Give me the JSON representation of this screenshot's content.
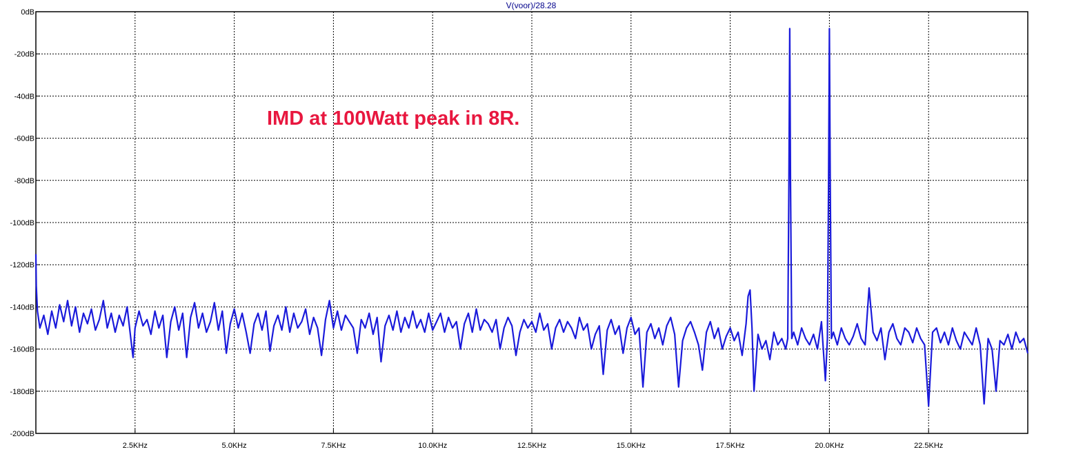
{
  "chart_data": {
    "type": "line",
    "title": "V(voor)/28.28",
    "annotation": "IMD at 100Watt peak in 8R.",
    "xlabel": "",
    "ylabel": "",
    "xlim": [
      0,
      25000
    ],
    "ylim": [
      -200,
      0
    ],
    "x_ticks": [
      2500,
      5000,
      7500,
      10000,
      12500,
      15000,
      17500,
      20000,
      22500
    ],
    "x_tick_labels": [
      "2.5KHz",
      "5.0KHz",
      "7.5KHz",
      "10.0KHz",
      "12.5KHz",
      "15.0KHz",
      "17.5KHz",
      "20.0KHz",
      "22.5KHz"
    ],
    "y_ticks": [
      0,
      -20,
      -40,
      -60,
      -80,
      -100,
      -120,
      -140,
      -160,
      -180,
      -200
    ],
    "y_tick_labels": [
      "0dB",
      "-20dB",
      "-40dB",
      "-60dB",
      "-80dB",
      "-100dB",
      "-120dB",
      "-140dB",
      "-160dB",
      "-180dB",
      "-200dB"
    ],
    "grid": true,
    "series": [
      {
        "name": "",
        "color": "#1a1adb",
        "points": [
          [
            0,
            -115
          ],
          [
            10,
            -130
          ],
          [
            40,
            -142
          ],
          [
            100,
            -150
          ],
          [
            200,
            -144
          ],
          [
            300,
            -153
          ],
          [
            400,
            -142
          ],
          [
            500,
            -150
          ],
          [
            600,
            -139
          ],
          [
            700,
            -147
          ],
          [
            800,
            -137
          ],
          [
            900,
            -149
          ],
          [
            1000,
            -140
          ],
          [
            1100,
            -152
          ],
          [
            1200,
            -143
          ],
          [
            1300,
            -148
          ],
          [
            1400,
            -141
          ],
          [
            1500,
            -151
          ],
          [
            1600,
            -146
          ],
          [
            1700,
            -137
          ],
          [
            1800,
            -150
          ],
          [
            1900,
            -143
          ],
          [
            2000,
            -152
          ],
          [
            2100,
            -144
          ],
          [
            2200,
            -149
          ],
          [
            2300,
            -140
          ],
          [
            2400,
            -156
          ],
          [
            2450,
            -164
          ],
          [
            2500,
            -150
          ],
          [
            2600,
            -142
          ],
          [
            2700,
            -149
          ],
          [
            2800,
            -146
          ],
          [
            2900,
            -153
          ],
          [
            3000,
            -142
          ],
          [
            3100,
            -150
          ],
          [
            3200,
            -144
          ],
          [
            3300,
            -164
          ],
          [
            3400,
            -147
          ],
          [
            3500,
            -140
          ],
          [
            3600,
            -151
          ],
          [
            3700,
            -143
          ],
          [
            3800,
            -164
          ],
          [
            3900,
            -145
          ],
          [
            4000,
            -138
          ],
          [
            4100,
            -150
          ],
          [
            4200,
            -143
          ],
          [
            4300,
            -152
          ],
          [
            4400,
            -147
          ],
          [
            4500,
            -138
          ],
          [
            4600,
            -151
          ],
          [
            4700,
            -142
          ],
          [
            4800,
            -162
          ],
          [
            4900,
            -148
          ],
          [
            5000,
            -141
          ],
          [
            5100,
            -150
          ],
          [
            5200,
            -143
          ],
          [
            5300,
            -152
          ],
          [
            5400,
            -162
          ],
          [
            5500,
            -148
          ],
          [
            5600,
            -143
          ],
          [
            5700,
            -151
          ],
          [
            5800,
            -142
          ],
          [
            5900,
            -161
          ],
          [
            6000,
            -149
          ],
          [
            6100,
            -144
          ],
          [
            6200,
            -151
          ],
          [
            6300,
            -140
          ],
          [
            6400,
            -152
          ],
          [
            6500,
            -143
          ],
          [
            6600,
            -150
          ],
          [
            6700,
            -147
          ],
          [
            6800,
            -141
          ],
          [
            6900,
            -153
          ],
          [
            7000,
            -145
          ],
          [
            7100,
            -150
          ],
          [
            7200,
            -163
          ],
          [
            7300,
            -146
          ],
          [
            7400,
            -137
          ],
          [
            7500,
            -150
          ],
          [
            7600,
            -142
          ],
          [
            7700,
            -151
          ],
          [
            7800,
            -144
          ],
          [
            7900,
            -147
          ],
          [
            8000,
            -150
          ],
          [
            8100,
            -162
          ],
          [
            8200,
            -146
          ],
          [
            8300,
            -150
          ],
          [
            8400,
            -143
          ],
          [
            8500,
            -153
          ],
          [
            8600,
            -145
          ],
          [
            8700,
            -166
          ],
          [
            8800,
            -149
          ],
          [
            8900,
            -144
          ],
          [
            9000,
            -151
          ],
          [
            9100,
            -142
          ],
          [
            9200,
            -152
          ],
          [
            9300,
            -145
          ],
          [
            9400,
            -150
          ],
          [
            9500,
            -142
          ],
          [
            9600,
            -150
          ],
          [
            9700,
            -146
          ],
          [
            9800,
            -152
          ],
          [
            9900,
            -143
          ],
          [
            10000,
            -151
          ],
          [
            10100,
            -147
          ],
          [
            10200,
            -143
          ],
          [
            10300,
            -152
          ],
          [
            10400,
            -145
          ],
          [
            10500,
            -150
          ],
          [
            10600,
            -147
          ],
          [
            10700,
            -160
          ],
          [
            10800,
            -148
          ],
          [
            10900,
            -143
          ],
          [
            11000,
            -152
          ],
          [
            11100,
            -141
          ],
          [
            11200,
            -151
          ],
          [
            11300,
            -146
          ],
          [
            11400,
            -148
          ],
          [
            11500,
            -152
          ],
          [
            11600,
            -146
          ],
          [
            11700,
            -160
          ],
          [
            11800,
            -150
          ],
          [
            11900,
            -145
          ],
          [
            12000,
            -149
          ],
          [
            12100,
            -163
          ],
          [
            12200,
            -152
          ],
          [
            12300,
            -146
          ],
          [
            12400,
            -150
          ],
          [
            12500,
            -147
          ],
          [
            12600,
            -152
          ],
          [
            12700,
            -143
          ],
          [
            12800,
            -151
          ],
          [
            12900,
            -148
          ],
          [
            13000,
            -160
          ],
          [
            13100,
            -150
          ],
          [
            13200,
            -146
          ],
          [
            13300,
            -152
          ],
          [
            13400,
            -147
          ],
          [
            13500,
            -150
          ],
          [
            13600,
            -155
          ],
          [
            13700,
            -145
          ],
          [
            13800,
            -151
          ],
          [
            13900,
            -148
          ],
          [
            14000,
            -160
          ],
          [
            14100,
            -153
          ],
          [
            14200,
            -149
          ],
          [
            14300,
            -172
          ],
          [
            14400,
            -151
          ],
          [
            14500,
            -146
          ],
          [
            14600,
            -153
          ],
          [
            14700,
            -149
          ],
          [
            14800,
            -162
          ],
          [
            14900,
            -150
          ],
          [
            15000,
            -145
          ],
          [
            15100,
            -153
          ],
          [
            15200,
            -150
          ],
          [
            15300,
            -178
          ],
          [
            15400,
            -152
          ],
          [
            15500,
            -148
          ],
          [
            15600,
            -155
          ],
          [
            15700,
            -150
          ],
          [
            15800,
            -158
          ],
          [
            15900,
            -149
          ],
          [
            16000,
            -145
          ],
          [
            16100,
            -153
          ],
          [
            16200,
            -178
          ],
          [
            16300,
            -156
          ],
          [
            16400,
            -150
          ],
          [
            16500,
            -147
          ],
          [
            16600,
            -152
          ],
          [
            16700,
            -158
          ],
          [
            16800,
            -170
          ],
          [
            16900,
            -152
          ],
          [
            17000,
            -147
          ],
          [
            17100,
            -155
          ],
          [
            17200,
            -150
          ],
          [
            17300,
            -160
          ],
          [
            17400,
            -154
          ],
          [
            17500,
            -150
          ],
          [
            17600,
            -156
          ],
          [
            17700,
            -152
          ],
          [
            17800,
            -163
          ],
          [
            17900,
            -148
          ],
          [
            17950,
            -135
          ],
          [
            18000,
            -132
          ],
          [
            18050,
            -150
          ],
          [
            18100,
            -180
          ],
          [
            18200,
            -153
          ],
          [
            18300,
            -160
          ],
          [
            18400,
            -156
          ],
          [
            18500,
            -165
          ],
          [
            18600,
            -152
          ],
          [
            18700,
            -158
          ],
          [
            18800,
            -155
          ],
          [
            18900,
            -160
          ],
          [
            18950,
            -155
          ],
          [
            18980,
            -80
          ],
          [
            19000,
            -8
          ],
          [
            19020,
            -80
          ],
          [
            19050,
            -155
          ],
          [
            19100,
            -152
          ],
          [
            19200,
            -158
          ],
          [
            19300,
            -150
          ],
          [
            19400,
            -155
          ],
          [
            19500,
            -158
          ],
          [
            19600,
            -153
          ],
          [
            19700,
            -160
          ],
          [
            19800,
            -147
          ],
          [
            19900,
            -175
          ],
          [
            19950,
            -155
          ],
          [
            19980,
            -80
          ],
          [
            20000,
            -8
          ],
          [
            20020,
            -80
          ],
          [
            20050,
            -155
          ],
          [
            20100,
            -152
          ],
          [
            20200,
            -158
          ],
          [
            20300,
            -150
          ],
          [
            20400,
            -155
          ],
          [
            20500,
            -158
          ],
          [
            20600,
            -154
          ],
          [
            20700,
            -148
          ],
          [
            20800,
            -155
          ],
          [
            20900,
            -158
          ],
          [
            21000,
            -131
          ],
          [
            21100,
            -152
          ],
          [
            21200,
            -156
          ],
          [
            21300,
            -150
          ],
          [
            21400,
            -165
          ],
          [
            21500,
            -152
          ],
          [
            21600,
            -148
          ],
          [
            21700,
            -155
          ],
          [
            21800,
            -158
          ],
          [
            21900,
            -150
          ],
          [
            22000,
            -152
          ],
          [
            22100,
            -157
          ],
          [
            22200,
            -150
          ],
          [
            22300,
            -155
          ],
          [
            22400,
            -158
          ],
          [
            22500,
            -187
          ],
          [
            22600,
            -152
          ],
          [
            22700,
            -150
          ],
          [
            22800,
            -157
          ],
          [
            22900,
            -152
          ],
          [
            23000,
            -158
          ],
          [
            23100,
            -150
          ],
          [
            23200,
            -156
          ],
          [
            23300,
            -160
          ],
          [
            23400,
            -152
          ],
          [
            23500,
            -155
          ],
          [
            23600,
            -158
          ],
          [
            23700,
            -150
          ],
          [
            23800,
            -158
          ],
          [
            23900,
            -186
          ],
          [
            24000,
            -155
          ],
          [
            24100,
            -160
          ],
          [
            24200,
            -180
          ],
          [
            24300,
            -156
          ],
          [
            24400,
            -158
          ],
          [
            24500,
            -153
          ],
          [
            24600,
            -160
          ],
          [
            24700,
            -152
          ],
          [
            24800,
            -157
          ],
          [
            24900,
            -155
          ],
          [
            25000,
            -162
          ]
        ]
      }
    ],
    "colors": {
      "trace": "#1a1adb",
      "title": "#00008b",
      "annotation": "#e8173f",
      "grid": "#000000"
    }
  }
}
